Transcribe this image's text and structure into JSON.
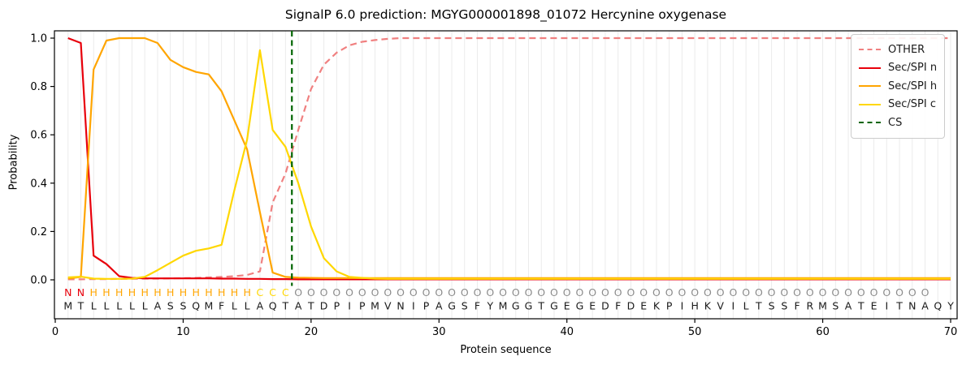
{
  "chart_data": {
    "type": "line",
    "title": "SignalP 6.0 prediction: MGYG000001898_01072 Hercynine oxygenase",
    "xlabel": "Protein sequence",
    "ylabel": "Probability",
    "xlim": [
      0,
      70.5
    ],
    "ylim": [
      -0.16,
      1.03
    ],
    "x_ticks": [
      0,
      10,
      20,
      30,
      40,
      50,
      60,
      70
    ],
    "y_ticks": [
      0.0,
      0.2,
      0.4,
      0.6,
      0.8,
      1.0
    ],
    "grid": "vertical gridline at every residue position",
    "legend_position": "upper right",
    "x": "residue positions 1-70",
    "series": [
      {
        "name": "OTHER",
        "color": "#f08080",
        "dash": true,
        "values": [
          0.002,
          0.002,
          0.003,
          0.003,
          0.004,
          0.004,
          0.005,
          0.005,
          0.006,
          0.007,
          0.008,
          0.01,
          0.012,
          0.015,
          0.02,
          0.035,
          0.32,
          0.44,
          0.62,
          0.79,
          0.89,
          0.94,
          0.97,
          0.985,
          0.992,
          0.997,
          1.0,
          1.0,
          1.0,
          1.0,
          1.0,
          1.0,
          1.0,
          1.0,
          1.0,
          1.0,
          1.0,
          1.0,
          1.0,
          1.0,
          1.0,
          1.0,
          1.0,
          1.0,
          1.0,
          1.0,
          1.0,
          1.0,
          1.0,
          1.0,
          1.0,
          1.0,
          1.0,
          1.0,
          1.0,
          1.0,
          1.0,
          1.0,
          1.0,
          1.0,
          1.0,
          1.0,
          1.0,
          1.0,
          1.0,
          1.0,
          1.0,
          1.0,
          1.0,
          1.0
        ]
      },
      {
        "name": "Sec/SPI n",
        "color": "#e8000b",
        "dash": false,
        "values": [
          1.0,
          0.98,
          0.1,
          0.065,
          0.015,
          0.008,
          0.006,
          0.006,
          0.006,
          0.006,
          0.006,
          0.006,
          0.005,
          0.005,
          0.004,
          0.004,
          0.003,
          0.003,
          0.002,
          0.002,
          0.002,
          0.002,
          0.002,
          0.002,
          0.002,
          0.002,
          0.002,
          0.002,
          0.002,
          0.002,
          0.002,
          0.002,
          0.002,
          0.002,
          0.002,
          0.002,
          0.002,
          0.002,
          0.002,
          0.002,
          0.002,
          0.002,
          0.002,
          0.002,
          0.002,
          0.002,
          0.002,
          0.002,
          0.002,
          0.002,
          0.002,
          0.002,
          0.002,
          0.002,
          0.002,
          0.002,
          0.002,
          0.002,
          0.002,
          0.002,
          0.002,
          0.002,
          0.002,
          0.002,
          0.002,
          0.002,
          0.002,
          0.002,
          0.002,
          0.002
        ]
      },
      {
        "name": "Sec/SPI h",
        "color": "#ffa500",
        "dash": false,
        "values": [
          0.005,
          0.012,
          0.87,
          0.99,
          1.0,
          1.0,
          1.0,
          0.98,
          0.91,
          0.88,
          0.86,
          0.85,
          0.78,
          0.66,
          0.54,
          0.28,
          0.03,
          0.012,
          0.009,
          0.008,
          0.007,
          0.007,
          0.007,
          0.007,
          0.007,
          0.007,
          0.007,
          0.007,
          0.007,
          0.007,
          0.007,
          0.007,
          0.007,
          0.007,
          0.007,
          0.007,
          0.007,
          0.007,
          0.007,
          0.007,
          0.007,
          0.007,
          0.007,
          0.007,
          0.007,
          0.007,
          0.007,
          0.007,
          0.007,
          0.007,
          0.007,
          0.007,
          0.007,
          0.007,
          0.007,
          0.007,
          0.007,
          0.007,
          0.007,
          0.007,
          0.007,
          0.007,
          0.007,
          0.007,
          0.007,
          0.007,
          0.007,
          0.007,
          0.007,
          0.007
        ]
      },
      {
        "name": "Sec/SPI c",
        "color": "#ffd700",
        "dash": false,
        "values": [
          0.01,
          0.013,
          0.005,
          0.004,
          0.004,
          0.005,
          0.012,
          0.04,
          0.07,
          0.1,
          0.12,
          0.13,
          0.145,
          0.37,
          0.58,
          0.95,
          0.62,
          0.55,
          0.4,
          0.22,
          0.09,
          0.035,
          0.012,
          0.008,
          0.005,
          0.004,
          0.004,
          0.004,
          0.004,
          0.004,
          0.004,
          0.004,
          0.004,
          0.004,
          0.004,
          0.004,
          0.004,
          0.004,
          0.004,
          0.004,
          0.004,
          0.004,
          0.004,
          0.004,
          0.004,
          0.004,
          0.004,
          0.004,
          0.004,
          0.004,
          0.004,
          0.004,
          0.004,
          0.004,
          0.004,
          0.004,
          0.004,
          0.004,
          0.004,
          0.004,
          0.004,
          0.004,
          0.004,
          0.004,
          0.004,
          0.004,
          0.004,
          0.004,
          0.004,
          0.004
        ]
      }
    ],
    "cs_marker": {
      "label": "CS",
      "color": "#006400",
      "dash": true,
      "x": 18.5
    },
    "sequence": "MTLLLLLASSQMFLLAQTATDPIPMVNIPAGSFYMGGTGEGEDFDEKPIHKVILTSSFRMSATEITNAQY",
    "region_labels": "NNHHHHHHHHHHHHHCCCOOOOOOOOOOOOOOOOOOOOOOOOOOOOOOOOOOOOOOOOOOOOOOOOOO",
    "region_label_colors": {
      "N": "#e8000b",
      "H": "#ffa500",
      "C": "#ffd700",
      "O": "#8c8c8c"
    },
    "sequence_color": "#1a1a1a",
    "legend": [
      {
        "label": "OTHER",
        "color": "#f08080",
        "dash": true
      },
      {
        "label": "Sec/SPI n",
        "color": "#e8000b",
        "dash": false
      },
      {
        "label": "Sec/SPI h",
        "color": "#ffa500",
        "dash": false
      },
      {
        "label": "Sec/SPI c",
        "color": "#ffd700",
        "dash": false
      },
      {
        "label": "CS",
        "color": "#006400",
        "dash": true
      }
    ],
    "frame_color": "#000000",
    "gridline_color": "#ebebeb"
  }
}
